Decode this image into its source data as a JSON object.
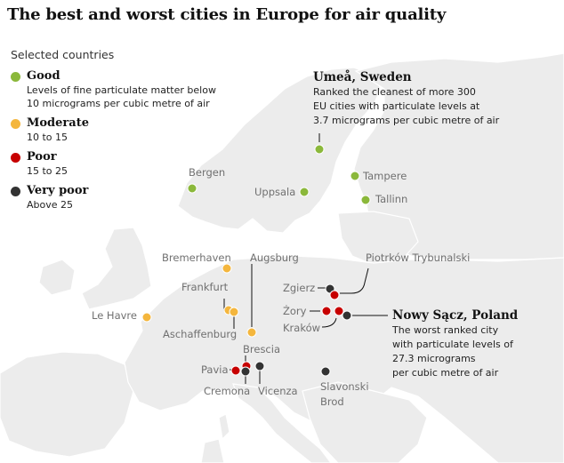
{
  "title": "The best and worst cities in Europe for air quality",
  "legend": {
    "heading": "Selected countries",
    "items": [
      {
        "key": "good",
        "label": "Good",
        "color": "#8bb83b",
        "desc": [
          "Levels of fine particulate matter below",
          "10 micrograms per cubic metre of air"
        ]
      },
      {
        "key": "moderate",
        "label": "Moderate",
        "color": "#f4b63d",
        "desc": [
          "10 to 15"
        ]
      },
      {
        "key": "poor",
        "label": "Poor",
        "color": "#c70000",
        "desc": [
          "15 to 25"
        ]
      },
      {
        "key": "very_poor",
        "label": "Very poor",
        "color": "#333333",
        "desc": [
          "Above 25"
        ]
      }
    ]
  },
  "cities": [
    {
      "name": "Umeå",
      "category": "good"
    },
    {
      "name": "Bergen",
      "category": "good"
    },
    {
      "name": "Tampere",
      "category": "good"
    },
    {
      "name": "Uppsala",
      "category": "good"
    },
    {
      "name": "Tallinn",
      "category": "good"
    },
    {
      "name": "Bremerhaven",
      "category": "moderate"
    },
    {
      "name": "Augsburg",
      "category": "moderate"
    },
    {
      "name": "Frankfurt",
      "category": "moderate"
    },
    {
      "name": "Aschaffenburg",
      "category": "moderate"
    },
    {
      "name": "Le Havre",
      "category": "moderate"
    },
    {
      "name": "Zgierz",
      "category": "very_poor"
    },
    {
      "name": "Piotrków Trybunalski",
      "category": "poor"
    },
    {
      "name": "Żory",
      "category": "poor"
    },
    {
      "name": "Kraków",
      "category": "poor"
    },
    {
      "name": "Nowy Sącz",
      "category": "very_poor"
    },
    {
      "name": "Brescia",
      "category": "poor"
    },
    {
      "name": "Pavia",
      "category": "poor"
    },
    {
      "name": "Cremona",
      "category": "very_poor"
    },
    {
      "name": "Vicenza",
      "category": "very_poor"
    },
    {
      "name": "Slavonski Brod",
      "category": "very_poor"
    }
  ],
  "callouts": {
    "umea": {
      "title": "Umeå, Sweden",
      "lines": [
        "Ranked the cleanest of more 300",
        "EU cities with particulate levels at",
        "3.7 micrograms per cubic metre of air"
      ]
    },
    "nowy_sacz": {
      "title": "Nowy Sącz, Poland",
      "lines": [
        "The worst ranked city",
        "with particulate levels of",
        "27.3 micrograms",
        "per cubic metre of air"
      ]
    }
  }
}
